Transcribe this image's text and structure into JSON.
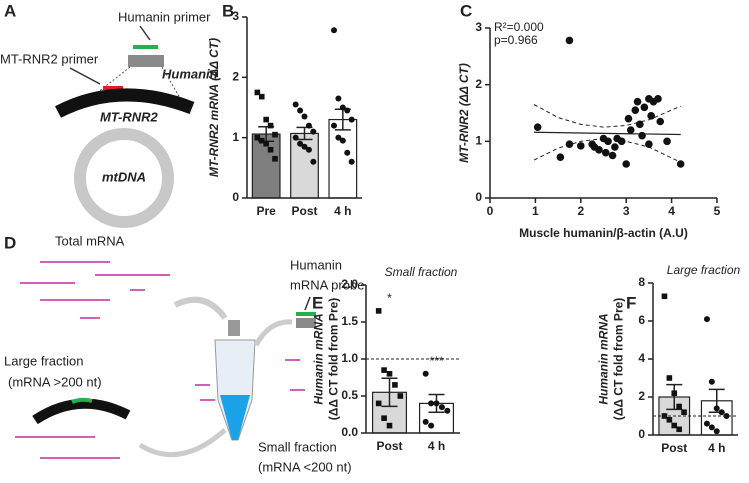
{
  "diagram_a": {
    "label": "A",
    "humanin_primer": "Humanin primer",
    "mtrnr2_primer": "MT-RNR2 primer",
    "humanin_gene": "Humanin",
    "mtrnr2_gene": "MT-RNR2",
    "mtdna": "mtDNA"
  },
  "diagram_d": {
    "label": "D",
    "total": "Total mRNA",
    "probe": [
      "Humanin",
      "mRNA probe"
    ],
    "large": [
      "Large fraction",
      "(mRNA >200 nt)"
    ],
    "small": [
      "Small fraction",
      "(mRNA <200 nt)"
    ]
  },
  "chart_data": [
    {
      "type": "bar",
      "label": "B",
      "categories": [
        "Pre",
        "Post",
        "4 h"
      ],
      "values": [
        1.06,
        1.07,
        1.3
      ],
      "errors": [
        0.12,
        0.1,
        0.17
      ],
      "colors": [
        "#7f7f7f",
        "#d9d9d9",
        "#ffffff"
      ],
      "points": [
        [
          1.75,
          1.68,
          1.3,
          1.2,
          1.05,
          1.0,
          0.95,
          0.9,
          0.8,
          0.65
        ],
        [
          1.55,
          1.45,
          1.35,
          1.2,
          1.1,
          1.0,
          0.9,
          0.85,
          0.8,
          0.6
        ],
        [
          2.78,
          1.65,
          1.5,
          1.45,
          1.3,
          1.2,
          1.0,
          0.95,
          0.75,
          0.6
        ]
      ],
      "ylabel": [
        "MT-RNR2 mRNA (ΔΔ CT)"
      ],
      "ylim": [
        0,
        3
      ],
      "yticks": [
        0,
        1,
        2,
        3
      ]
    },
    {
      "type": "scatter",
      "label": "C",
      "annotations": [
        "R²=0.000",
        "p=0.966"
      ],
      "x": [
        1.05,
        1.75,
        1.55,
        1.75,
        2.0,
        2.25,
        2.3,
        2.4,
        2.5,
        2.55,
        2.6,
        2.7,
        2.75,
        2.8,
        2.9,
        3.0,
        3.05,
        3.1,
        3.2,
        3.25,
        3.3,
        3.35,
        3.4,
        3.5,
        3.5,
        3.55,
        3.6,
        3.7,
        3.75,
        3.9,
        4.2
      ],
      "y": [
        1.25,
        2.78,
        0.72,
        0.95,
        0.92,
        0.95,
        0.9,
        0.85,
        1.05,
        0.8,
        1.0,
        0.75,
        0.9,
        1.05,
        1.0,
        0.6,
        1.4,
        1.2,
        1.55,
        1.7,
        1.3,
        1.1,
        1.6,
        1.75,
        0.95,
        1.45,
        1.7,
        1.75,
        1.35,
        1.0,
        0.6
      ],
      "fit": {
        "x": [
          0.97,
          4.2
        ],
        "y": [
          1.16,
          1.12
        ]
      },
      "ci": {
        "x": [
          0.97,
          1.5,
          2,
          2.5,
          3,
          3.5,
          4.2
        ],
        "upper": [
          1.65,
          1.42,
          1.3,
          1.25,
          1.28,
          1.38,
          1.62
        ],
        "lower": [
          0.67,
          0.88,
          1.0,
          1.05,
          1.0,
          0.9,
          0.63
        ]
      },
      "xlabel": "Muscle humanin/β-actin (A.U)",
      "ylabel": [
        "MT-RNR2 (ΔΔ CT)"
      ],
      "xlim": [
        0,
        5
      ],
      "xticks": [
        0,
        1,
        2,
        3,
        4,
        5
      ],
      "ylim": [
        0,
        3
      ],
      "yticks": [
        0,
        1,
        2,
        3
      ]
    },
    {
      "type": "bar",
      "label": "E",
      "subtitle": "Small fraction",
      "categories": [
        "Post",
        "4 h"
      ],
      "values": [
        0.55,
        0.4
      ],
      "errors": [
        0.19,
        0.12
      ],
      "colors": [
        "#d9d9d9",
        "#ffffff"
      ],
      "value_annotations": [
        "*",
        "***"
      ],
      "refline": 1,
      "points": [
        [
          1.65,
          0.85,
          0.8,
          0.65,
          0.5,
          0.4,
          0.2,
          0.1
        ],
        [
          0.8,
          0.4,
          0.4,
          0.35,
          0.3,
          0.15,
          0.1
        ]
      ],
      "ylabel": [
        "Humanin mRNA",
        "(ΔΔ CT fold from Pre)"
      ],
      "ylim": [
        0,
        2
      ],
      "yticks": [
        {
          "value": 0,
          "label": "0.0"
        },
        0.5,
        {
          "value": 1,
          "label": "1.0"
        },
        1.5,
        {
          "value": 2,
          "label": "2.0"
        }
      ]
    },
    {
      "type": "bar",
      "label": "F",
      "subtitle": "Large fraction",
      "categories": [
        "Post",
        "4 h"
      ],
      "values": [
        2.0,
        1.8
      ],
      "errors": [
        0.65,
        0.6
      ],
      "colors": [
        "#d9d9d9",
        "#ffffff"
      ],
      "refline": 1,
      "points": [
        [
          7.3,
          3.0,
          2.2,
          1.5,
          1.2,
          1.0,
          0.8,
          0.5,
          0.3
        ],
        [
          6.1,
          2.8,
          1.4,
          1.2,
          1.0,
          0.6,
          0.4,
          0.2
        ]
      ],
      "ylabel": [
        "Humanin mRNA",
        "(ΔΔ CT fold from Pre)"
      ],
      "ylim": [
        0,
        8
      ],
      "yticks": [
        0,
        2,
        4,
        6,
        8
      ]
    }
  ]
}
